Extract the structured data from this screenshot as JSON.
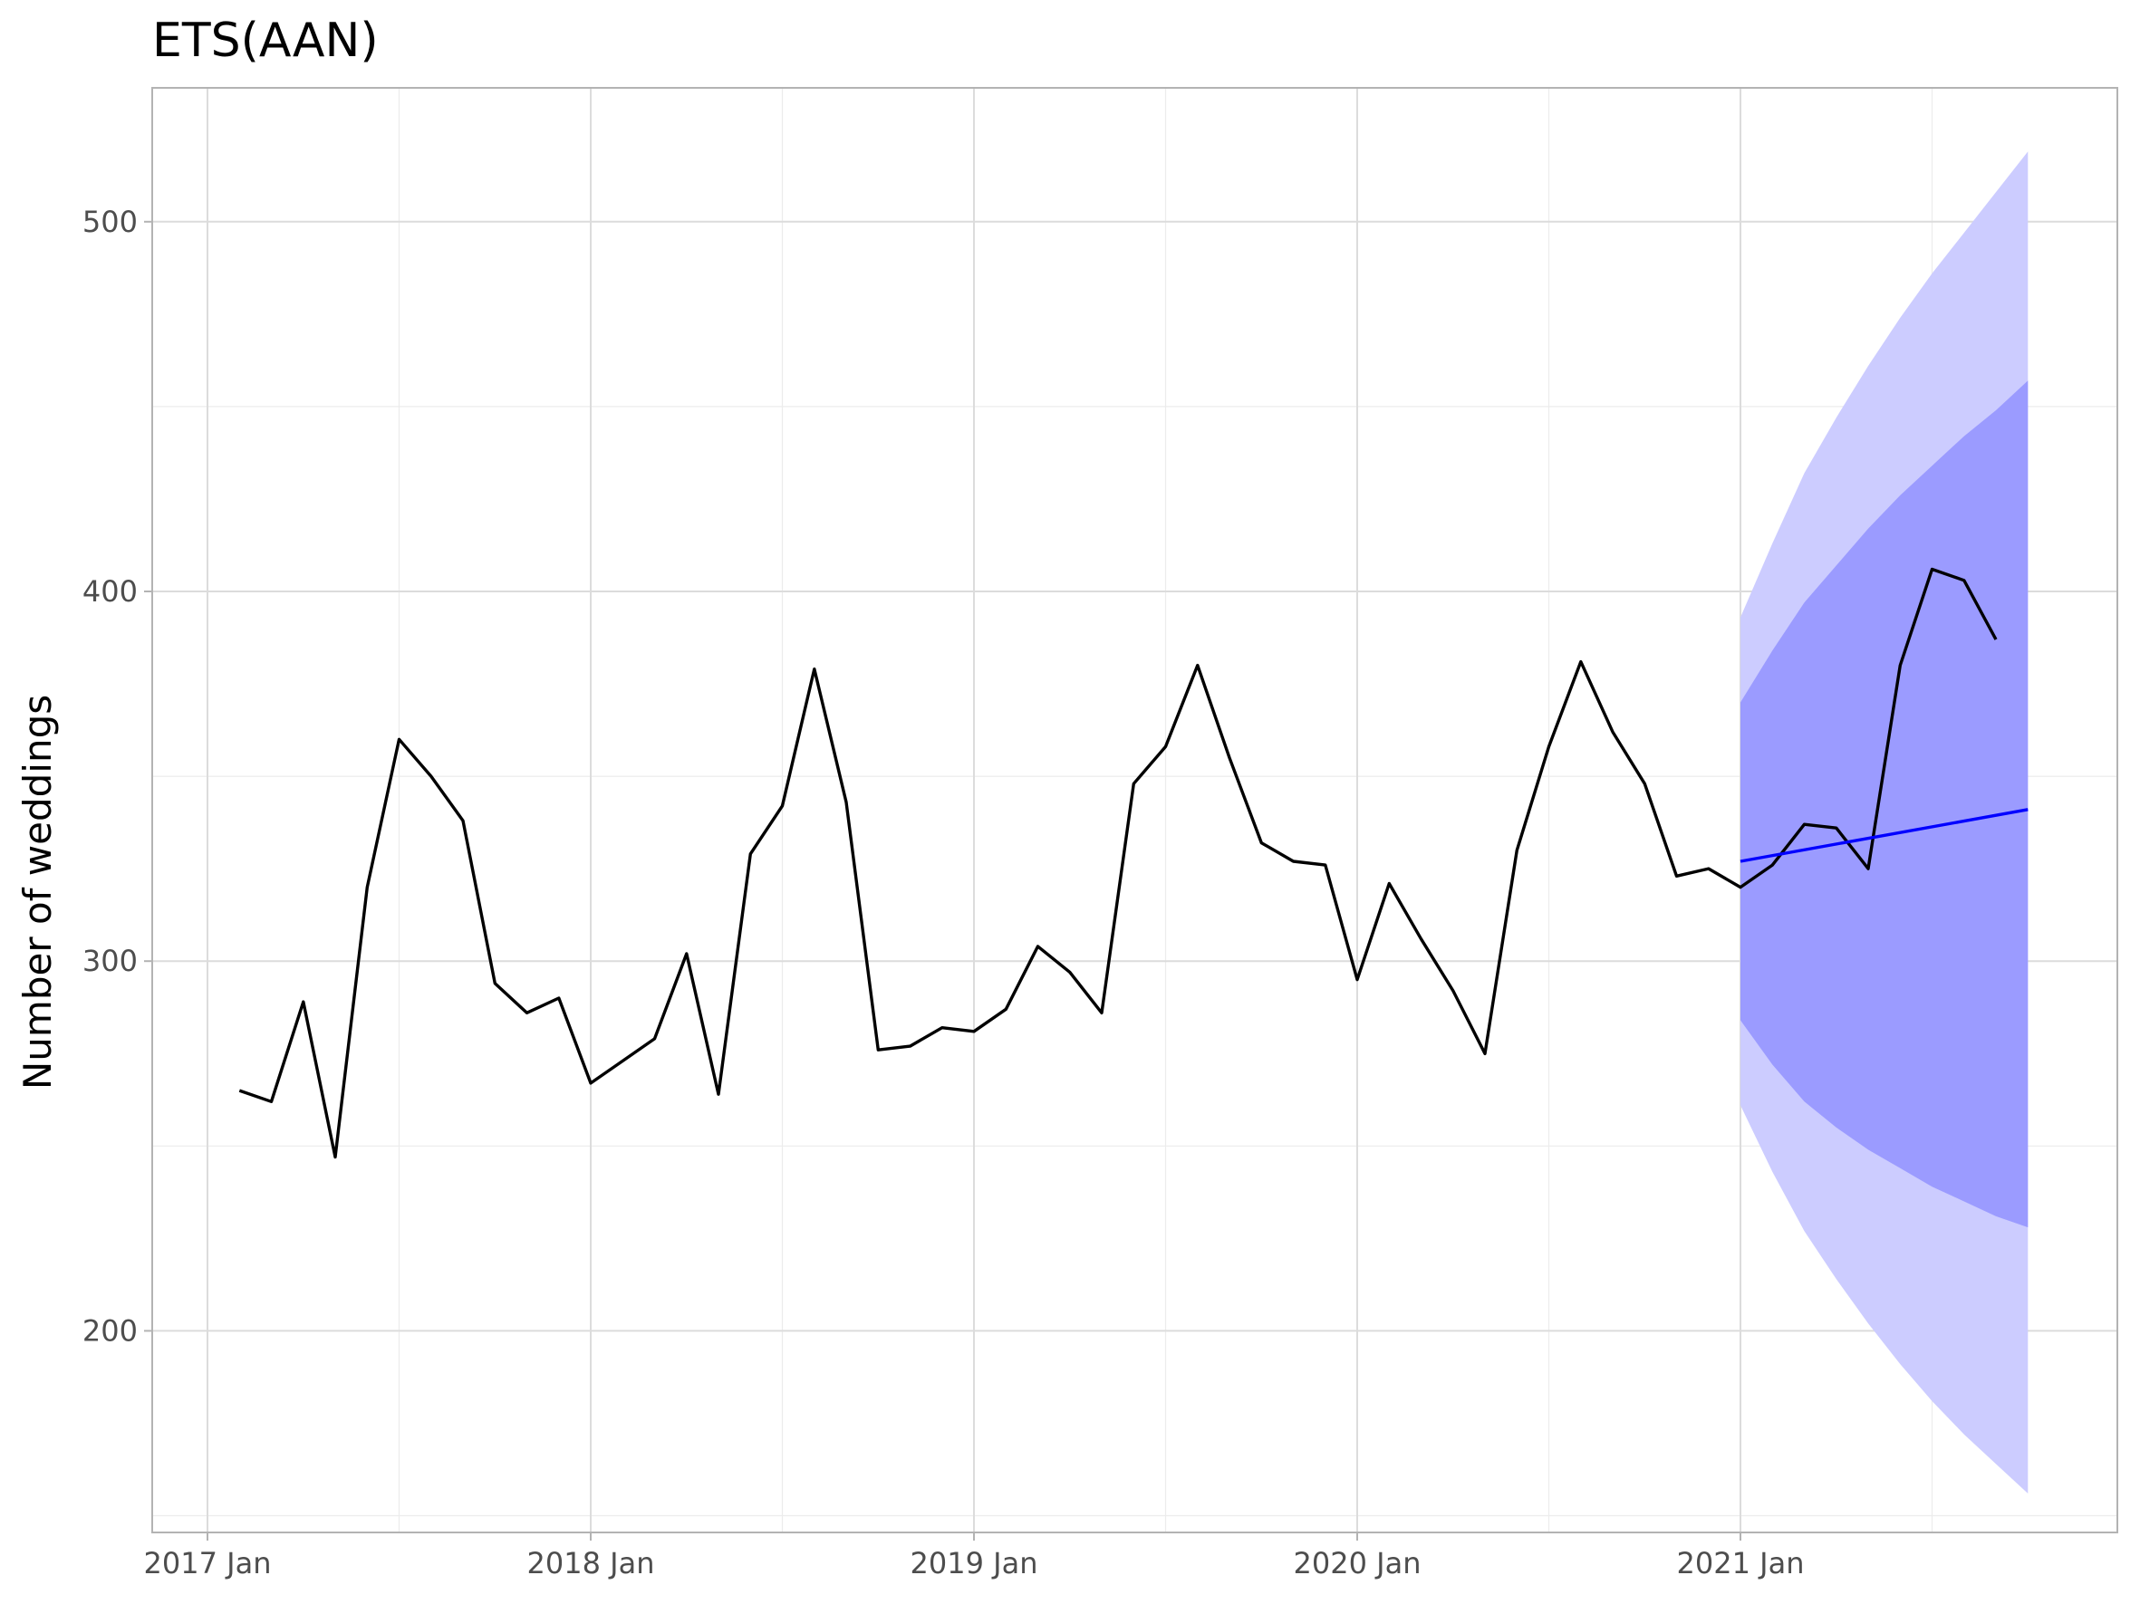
{
  "chart_data": {
    "type": "line",
    "title": "ETS(AAN)",
    "xlabel": "",
    "ylabel": "Number of weddings",
    "x_tick_labels": [
      "2017 Jan",
      "2018 Jan",
      "2019 Jan",
      "2020 Jan",
      "2021 Jan"
    ],
    "y_tick_labels": [
      "200",
      "300",
      "400",
      "500"
    ],
    "y_ticks": [
      200,
      300,
      400,
      500
    ],
    "xlim": [
      "2016-12",
      "2021-11"
    ],
    "ylim": [
      150,
      535
    ],
    "grid": true,
    "legend": "none",
    "series": [
      {
        "role": "observed",
        "color": "#000000",
        "points": [
          [
            "2017-02",
            265
          ],
          [
            "2017-03",
            262
          ],
          [
            "2017-04",
            289
          ],
          [
            "2017-05",
            247
          ],
          [
            "2017-06",
            320
          ],
          [
            "2017-07",
            360
          ],
          [
            "2017-08",
            350
          ],
          [
            "2017-09",
            338
          ],
          [
            "2017-10",
            294
          ],
          [
            "2017-11",
            286
          ],
          [
            "2017-12",
            290
          ],
          [
            "2018-01",
            267
          ],
          [
            "2018-02",
            273
          ],
          [
            "2018-03",
            279
          ],
          [
            "2018-04",
            302
          ],
          [
            "2018-05",
            264
          ],
          [
            "2018-06",
            329
          ],
          [
            "2018-07",
            342
          ],
          [
            "2018-08",
            379
          ],
          [
            "2018-09",
            343
          ],
          [
            "2018-10",
            276
          ],
          [
            "2018-11",
            277
          ],
          [
            "2018-12",
            282
          ],
          [
            "2019-01",
            281
          ],
          [
            "2019-02",
            287
          ],
          [
            "2019-03",
            304
          ],
          [
            "2019-04",
            297
          ],
          [
            "2019-05",
            286
          ],
          [
            "2019-06",
            348
          ],
          [
            "2019-07",
            358
          ],
          [
            "2019-08",
            380
          ],
          [
            "2019-09",
            355
          ],
          [
            "2019-10",
            332
          ],
          [
            "2019-11",
            327
          ],
          [
            "2019-12",
            326
          ],
          [
            "2020-01",
            295
          ],
          [
            "2020-02",
            321
          ],
          [
            "2020-03",
            306
          ],
          [
            "2020-04",
            292
          ],
          [
            "2020-05",
            275
          ],
          [
            "2020-06",
            330
          ],
          [
            "2020-07",
            358
          ],
          [
            "2020-08",
            381
          ],
          [
            "2020-09",
            362
          ],
          [
            "2020-10",
            348
          ],
          [
            "2020-11",
            323
          ],
          [
            "2020-12",
            325
          ],
          [
            "2021-01",
            320
          ],
          [
            "2021-02",
            326
          ],
          [
            "2021-03",
            337
          ],
          [
            "2021-04",
            336
          ],
          [
            "2021-05",
            325
          ],
          [
            "2021-06",
            380
          ],
          [
            "2021-07",
            406
          ],
          [
            "2021-08",
            403
          ],
          [
            "2021-09",
            387
          ]
        ]
      },
      {
        "role": "point-forecast",
        "color": "#0000ff",
        "points": [
          [
            "2021-01",
            327
          ],
          [
            "2021-10",
            341
          ]
        ]
      }
    ],
    "intervals": [
      {
        "level": "95%",
        "color": "#ccccff",
        "x": [
          "2021-01",
          "2021-02",
          "2021-03",
          "2021-04",
          "2021-05",
          "2021-06",
          "2021-07",
          "2021-08",
          "2021-09",
          "2021-10"
        ],
        "lower": [
          261,
          243,
          227,
          214,
          202,
          191,
          181,
          172,
          164,
          156
        ],
        "upper": [
          393,
          413,
          432,
          447,
          461,
          474,
          486,
          497,
          508,
          519
        ]
      },
      {
        "level": "80%",
        "color": "#9b9bff",
        "x": [
          "2021-01",
          "2021-02",
          "2021-03",
          "2021-04",
          "2021-05",
          "2021-06",
          "2021-07",
          "2021-08",
          "2021-09",
          "2021-10"
        ],
        "lower": [
          284,
          272,
          262,
          255,
          249,
          244,
          239,
          235,
          231,
          228
        ],
        "upper": [
          370,
          384,
          397,
          407,
          417,
          426,
          434,
          442,
          449,
          457
        ]
      }
    ]
  }
}
